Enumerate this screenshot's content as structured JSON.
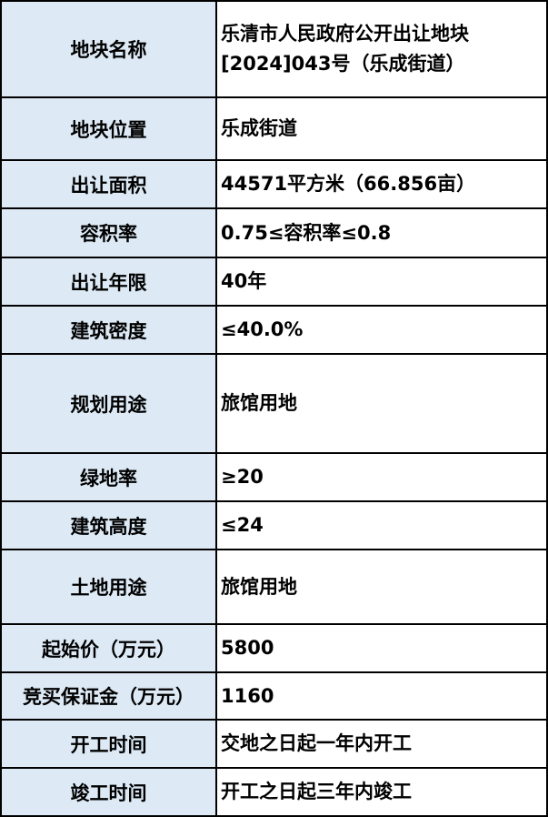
{
  "rows": [
    {
      "label": "地块名称",
      "value": "乐清市人民政府公开出让地块[2024]043号（乐成街道）"
    },
    {
      "label": "地块位置",
      "value": "乐成街道"
    },
    {
      "label": "出让面积",
      "value": "44571平方米（66.856亩）"
    },
    {
      "label": "容积率",
      "value": "0.75≤容积率≤0.8"
    },
    {
      "label": "出让年限",
      "value": "40年"
    },
    {
      "label": "建筑密度",
      "value": "≤40.0%"
    },
    {
      "label": "规划用途",
      "value": "旅馆用地"
    },
    {
      "label": "绿地率",
      "value": "≥20"
    },
    {
      "label": "建筑高度",
      "value": "≤24"
    },
    {
      "label": "土地用途",
      "value": "旅馆用地"
    },
    {
      "label": "起始价（万元）",
      "value": "5800"
    },
    {
      "label": "竞买保证金（万元）",
      "value": "1160"
    },
    {
      "label": "开工时间",
      "value": "交地之日起一年内开工"
    },
    {
      "label": "竣工时间",
      "value": "开工之日起三年内竣工"
    }
  ],
  "colors": {
    "label_bg": "#dde9f5",
    "border": "#000000"
  }
}
